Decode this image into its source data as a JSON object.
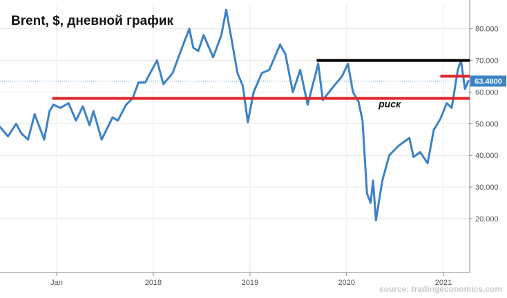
{
  "chart_data": {
    "type": "line",
    "title": "Brent, $, дневной график",
    "source": "source: tradingeconomics.com",
    "y_axis": {
      "ticks": [
        "20.000",
        "30.000",
        "40.000",
        "50.000",
        "60.000",
        "70.000",
        "80.000"
      ],
      "tick_values": [
        20,
        30,
        40,
        50,
        60,
        70,
        80
      ],
      "range": [
        3,
        88
      ],
      "position": "right",
      "grid": true
    },
    "x_axis": {
      "ticks": [
        "Jan",
        "2018",
        "2019",
        "2020",
        "2021"
      ],
      "tick_dates": [
        "2017-01-01",
        "2018-01-01",
        "2019-01-01",
        "2020-01-01",
        "2021-01-01"
      ],
      "range": [
        "2016-06-01",
        "2021-04-10"
      ],
      "grid": true
    },
    "last_value": {
      "label": "63.4800",
      "value": 63.48
    },
    "series": [
      {
        "color": "#3b82c6",
        "points": [
          [
            "2016-06-01",
            49
          ],
          [
            "2016-07-01",
            46
          ],
          [
            "2016-08-01",
            50
          ],
          [
            "2016-08-20",
            47
          ],
          [
            "2016-09-15",
            45
          ],
          [
            "2016-10-10",
            53
          ],
          [
            "2016-11-15",
            45
          ],
          [
            "2016-12-05",
            54
          ],
          [
            "2016-12-20",
            56
          ],
          [
            "2017-01-15",
            55
          ],
          [
            "2017-02-15",
            56.5
          ],
          [
            "2017-03-15",
            51
          ],
          [
            "2017-04-10",
            55.5
          ],
          [
            "2017-05-05",
            49.5
          ],
          [
            "2017-05-20",
            54
          ],
          [
            "2017-06-20",
            45
          ],
          [
            "2017-07-31",
            52
          ],
          [
            "2017-08-20",
            51
          ],
          [
            "2017-09-20",
            56
          ],
          [
            "2017-10-15",
            58
          ],
          [
            "2017-11-06",
            63
          ],
          [
            "2017-12-01",
            63
          ],
          [
            "2018-01-15",
            70
          ],
          [
            "2018-02-08",
            62.5
          ],
          [
            "2018-03-15",
            66
          ],
          [
            "2018-04-15",
            73
          ],
          [
            "2018-05-17",
            80
          ],
          [
            "2018-06-01",
            74
          ],
          [
            "2018-06-20",
            73
          ],
          [
            "2018-07-10",
            78
          ],
          [
            "2018-08-15",
            71
          ],
          [
            "2018-09-15",
            78
          ],
          [
            "2018-10-03",
            86
          ],
          [
            "2018-10-25",
            76
          ],
          [
            "2018-11-15",
            66
          ],
          [
            "2018-12-05",
            62
          ],
          [
            "2018-12-24",
            50.5
          ],
          [
            "2019-01-15",
            60
          ],
          [
            "2019-02-15",
            66
          ],
          [
            "2019-03-15",
            67
          ],
          [
            "2019-04-25",
            75
          ],
          [
            "2019-05-15",
            72
          ],
          [
            "2019-06-12",
            60
          ],
          [
            "2019-07-10",
            67
          ],
          [
            "2019-08-07",
            56
          ],
          [
            "2019-09-16",
            69
          ],
          [
            "2019-10-03",
            57.5
          ],
          [
            "2019-11-15",
            62
          ],
          [
            "2019-12-15",
            65
          ],
          [
            "2020-01-06",
            69
          ],
          [
            "2020-01-25",
            60
          ],
          [
            "2020-02-15",
            57
          ],
          [
            "2020-03-01",
            51
          ],
          [
            "2020-03-18",
            28
          ],
          [
            "2020-04-01",
            25
          ],
          [
            "2020-04-10",
            32
          ],
          [
            "2020-04-21",
            19.5
          ],
          [
            "2020-05-15",
            32
          ],
          [
            "2020-06-10",
            40
          ],
          [
            "2020-07-15",
            43
          ],
          [
            "2020-08-25",
            45.5
          ],
          [
            "2020-09-10",
            39.5
          ],
          [
            "2020-10-05",
            41
          ],
          [
            "2020-11-02",
            37.5
          ],
          [
            "2020-11-25",
            48
          ],
          [
            "2020-12-20",
            51.5
          ],
          [
            "2021-01-13",
            56.5
          ],
          [
            "2021-02-01",
            55
          ],
          [
            "2021-02-24",
            67
          ],
          [
            "2021-03-08",
            70
          ],
          [
            "2021-03-23",
            61
          ],
          [
            "2021-04-05",
            63.48
          ]
        ]
      }
    ],
    "levels": [
      {
        "value": 58,
        "start": "2016-12-15",
        "color": "#e0262b"
      },
      {
        "value": 70,
        "start": "2019-09-10",
        "color": "#000000"
      },
      {
        "value": 65,
        "start": "2020-12-20",
        "color": "#e0262b"
      }
    ],
    "annotations": [
      {
        "text": "риск",
        "x": "2020-05-01",
        "y": 55.2
      }
    ]
  }
}
